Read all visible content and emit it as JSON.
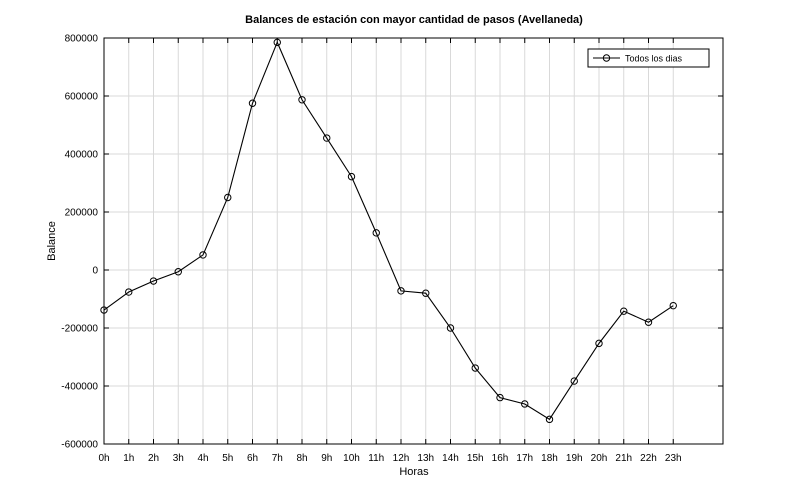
{
  "chart_data": {
    "type": "line",
    "title": "Balances de estación con mayor cantidad de pasos (Avellaneda)",
    "xlabel": "Horas",
    "ylabel": "Balance",
    "categories": [
      "0h",
      "1h",
      "2h",
      "3h",
      "4h",
      "5h",
      "6h",
      "7h",
      "8h",
      "9h",
      "10h",
      "11h",
      "12h",
      "13h",
      "14h",
      "15h",
      "16h",
      "17h",
      "18h",
      "19h",
      "20h",
      "21h",
      "22h",
      "23h"
    ],
    "series": [
      {
        "name": "Todos los dias",
        "values": [
          -138000,
          -76000,
          -38000,
          -6000,
          52000,
          250000,
          575000,
          785000,
          587000,
          455000,
          322000,
          128000,
          -72000,
          -80000,
          -200000,
          -338000,
          -440000,
          -462000,
          -515000,
          -383000,
          -253000,
          -142000,
          -180000,
          -123000
        ]
      }
    ],
    "ylim": [
      -600000,
      800000
    ],
    "yticks": [
      "-600000",
      "-400000",
      "-200000",
      "0",
      "200000",
      "400000",
      "600000",
      "800000"
    ],
    "grid": true,
    "legend_position": "top-right",
    "colors": {
      "line": "#000000",
      "grid": "#d9d9d9",
      "axes": "#000000"
    }
  }
}
